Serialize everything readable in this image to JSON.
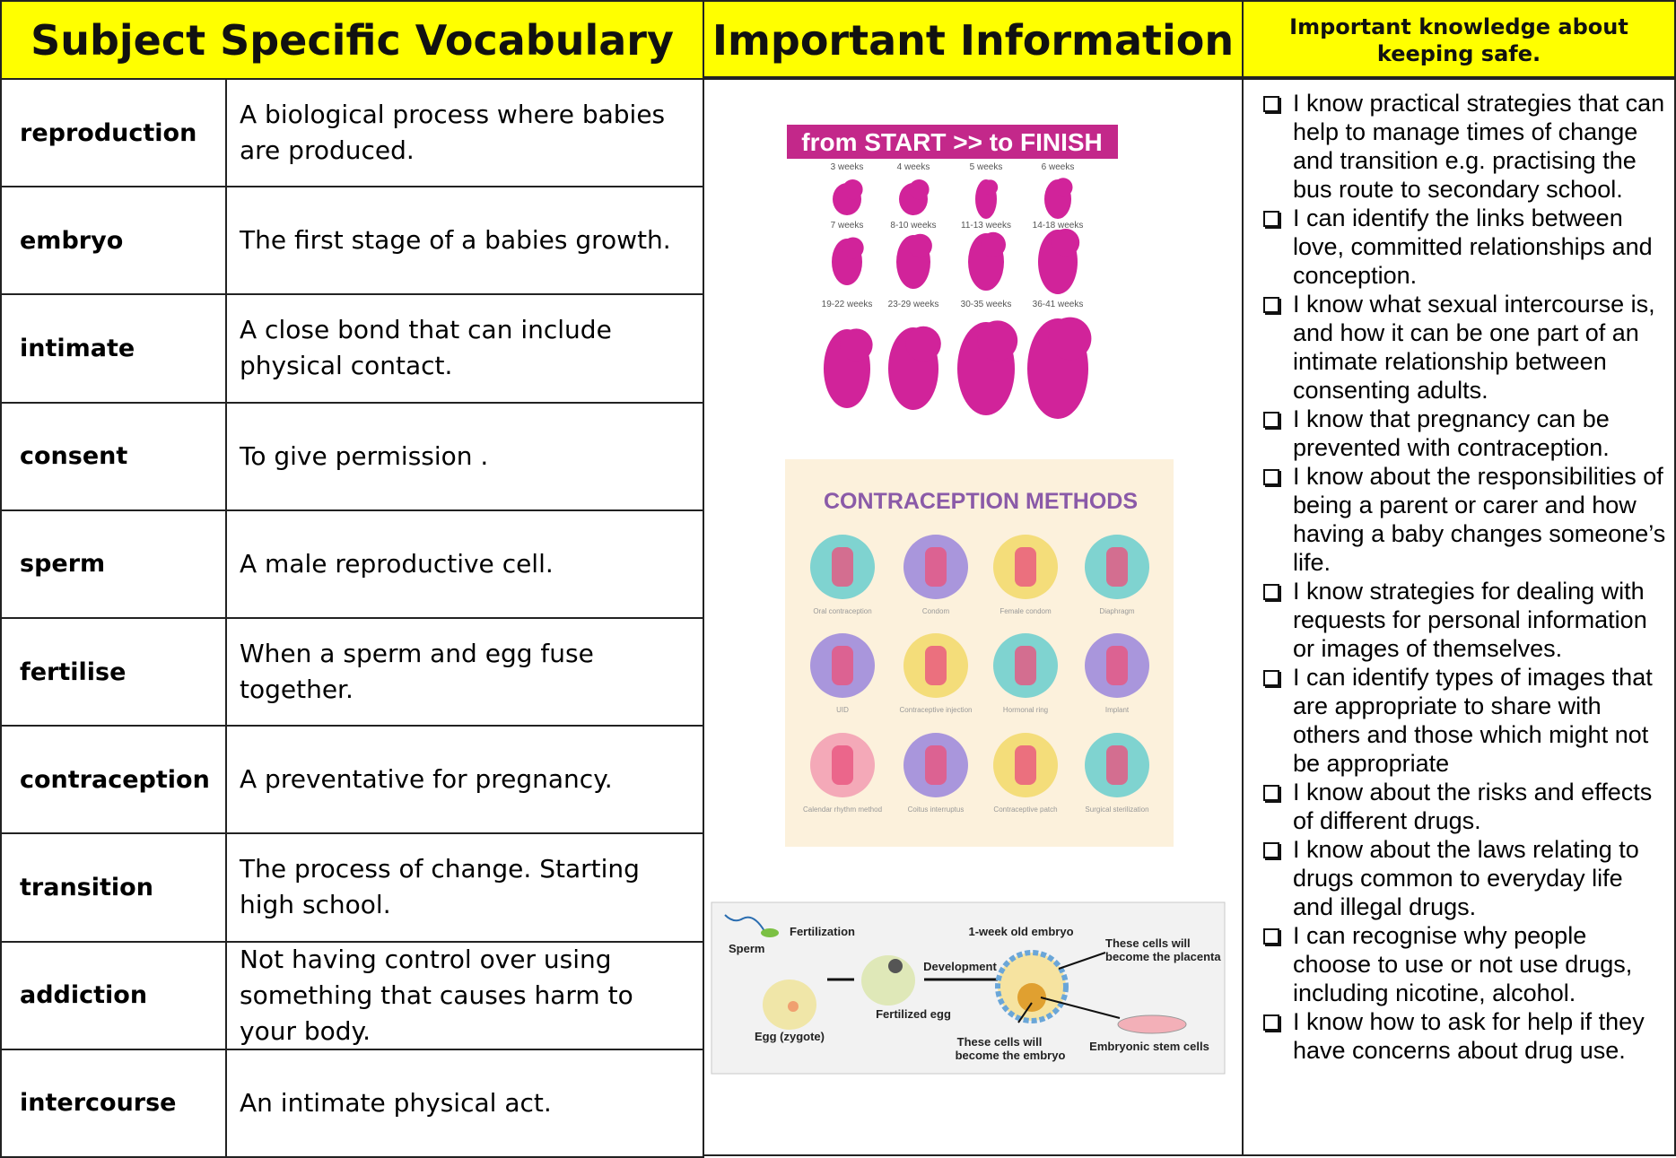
{
  "header": {
    "vocabulary_title": "Subject Specific Vocabulary",
    "info_title": "Important Information",
    "safety_title": "Important knowledge about keeping safe."
  },
  "vocabulary": [
    {
      "term": "reproduction",
      "definition": "A biological process where babies are produced."
    },
    {
      "term": "embryo",
      "definition": "The first stage of a babies growth."
    },
    {
      "term": "intimate",
      "definition": "A close bond that can include physical contact."
    },
    {
      "term": "consent",
      "definition": "To give permission ."
    },
    {
      "term": "sperm",
      "definition": "A male reproductive cell."
    },
    {
      "term": "fertilise",
      "definition": "When a sperm and egg fuse together."
    },
    {
      "term": "contraception",
      "definition": "A preventative for pregnancy."
    },
    {
      "term": "transition",
      "definition": "The process of change. Starting high school."
    },
    {
      "term": "addiction",
      "definition": "Not having control over using something that causes harm to your body."
    },
    {
      "term": "intercourse",
      "definition": "An intimate physical act."
    }
  ],
  "information": {
    "development": {
      "title": "from START >> to FINISH",
      "stages": [
        "3 weeks",
        "4 weeks",
        "5 weeks",
        "6 weeks",
        "7 weeks",
        "8-10 weeks",
        "11-13 weeks",
        "14-18 weeks",
        "19-22 weeks",
        "23-29 weeks",
        "30-35 weeks",
        "36-41 weeks"
      ]
    },
    "contraception": {
      "title": "CONTRACEPTION METHODS",
      "methods": [
        "Oral contraception",
        "Condom",
        "Female condom",
        "Diaphragm",
        "UID",
        "Contraceptive injection",
        "Hormonal ring",
        "Implant",
        "Calendar rhythm method",
        "Coitus interruptus",
        "Contraceptive patch",
        "Surgical sterilization"
      ]
    },
    "fertilization": {
      "sperm": "Sperm",
      "fertilization": "Fertilization",
      "egg": "Egg (zygote)",
      "fertilized_egg": "Fertilized egg",
      "development": "Development",
      "embryo_title": "1-week old embryo",
      "placenta_cells": [
        "These cells will",
        "become the placenta"
      ],
      "embryo_cells": [
        "These cells will",
        "become the embryo"
      ],
      "stem_cells": "Embryonic stem cells"
    }
  },
  "safety": [
    "I know practical strategies that can help to manage times of change and transition e.g. practising the bus route to secondary school.",
    "I can identify the links between love, committed relationships and conception.",
    "I know what sexual intercourse is, and how it can be one part of an intimate relationship between consenting adults.",
    "I know that pregnancy can be prevented with contraception.",
    "I know about the responsibilities of being a parent or carer and how having a baby changes someone’s life.",
    "I know strategies for dealing with requests for personal information or images of themselves.",
    "I can identify types of images that are appropriate to share with others and those which might not be appropriate",
    "I know about the risks and effects of different drugs.",
    "I know about the laws relating to drugs common to everyday life and illegal drugs.",
    "I can recognise why people choose to use or not use drugs, including nicotine, alcohol.",
    "I know how to ask for help if they have concerns about drug use."
  ]
}
